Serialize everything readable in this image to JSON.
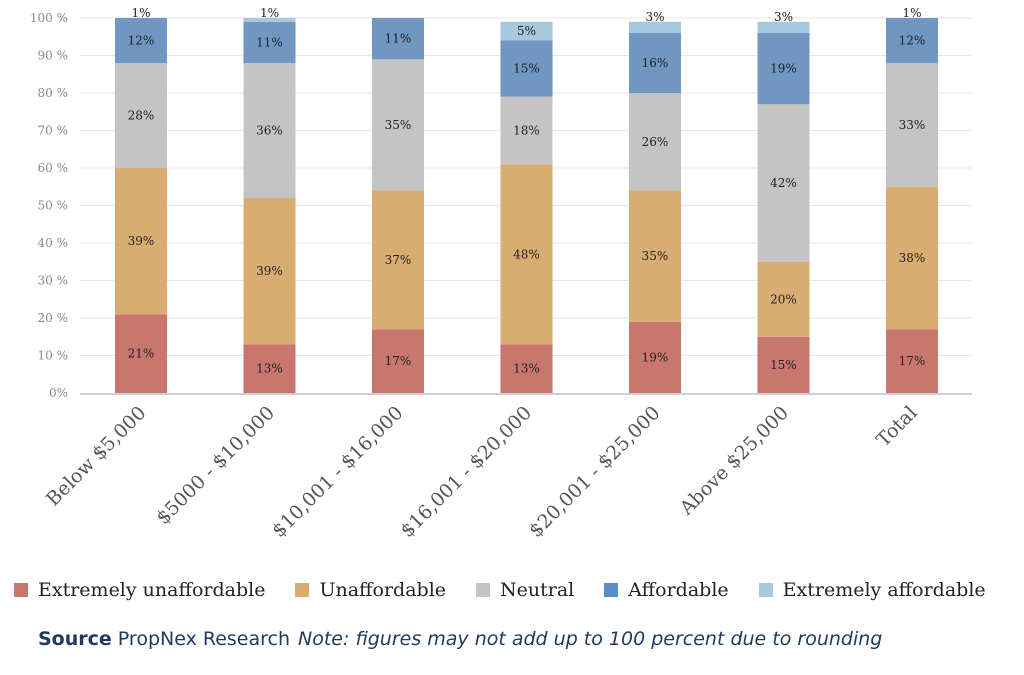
{
  "chart_data": {
    "type": "bar",
    "stacked": true,
    "categories": [
      "Below $5,000",
      "$5000 - $10,000",
      "$10,001 - $16,000",
      "$16,001 - $20,000",
      "$20,001 - $25,000",
      "Above $25,000",
      "Total"
    ],
    "series": [
      {
        "name": "Extremely unaffordable",
        "color": "#c9766f",
        "values": [
          21,
          13,
          17,
          13,
          19,
          15,
          17
        ],
        "labels": [
          "21%",
          "13%",
          "17%",
          "13%",
          "19%",
          "15%",
          "17%"
        ]
      },
      {
        "name": "Unaffordable",
        "color": "#d9ad72",
        "values": [
          39,
          39,
          37,
          48,
          35,
          20,
          38
        ],
        "labels": [
          "39%",
          "39%",
          "37%",
          "48%",
          "35%",
          "20%",
          "38%"
        ]
      },
      {
        "name": "Neutral",
        "color": "#c4c4c4",
        "values": [
          28,
          36,
          35,
          18,
          26,
          42,
          33
        ],
        "labels": [
          "28%",
          "36%",
          "35%",
          "18%",
          "26%",
          "42%",
          "33%"
        ]
      },
      {
        "name": "Affordable",
        "color": "#7096c2",
        "values": [
          12,
          11,
          11,
          15,
          16,
          19,
          12
        ],
        "labels": [
          "12%",
          "11%",
          "11%",
          "15%",
          "16%",
          "19%",
          "12%"
        ]
      },
      {
        "name": "Extremely affordable",
        "color": "#a8c8dd",
        "values": [
          1,
          1,
          0,
          5,
          3,
          3,
          1
        ],
        "labels": [
          "1%",
          "1%",
          "",
          "5%",
          "3%",
          "3%",
          "1%"
        ]
      }
    ],
    "yticks": [
      "0%",
      "10 %",
      "20 %",
      "30 %",
      "40 %",
      "50 %",
      "60 %",
      "70 %",
      "80 %",
      "90 %",
      "100 %"
    ],
    "ylim": [
      0,
      100
    ],
    "grid": true,
    "legend_position": "bottom"
  },
  "legend": [
    {
      "label": "Extremely unaffordable",
      "color": "#c9766f"
    },
    {
      "label": "Unaffordable",
      "color": "#d9ad72"
    },
    {
      "label": "Neutral",
      "color": "#c4c4c4"
    },
    {
      "label": "Affordable",
      "color": "#5b8ec9"
    },
    {
      "label": "Extremely affordable",
      "color": "#a8c8dd"
    }
  ],
  "source": {
    "title": "Source",
    "text": "PropNex Research",
    "note_label": "Note",
    "note_text": ": figures may not add up to 100 percent due to rounding"
  }
}
